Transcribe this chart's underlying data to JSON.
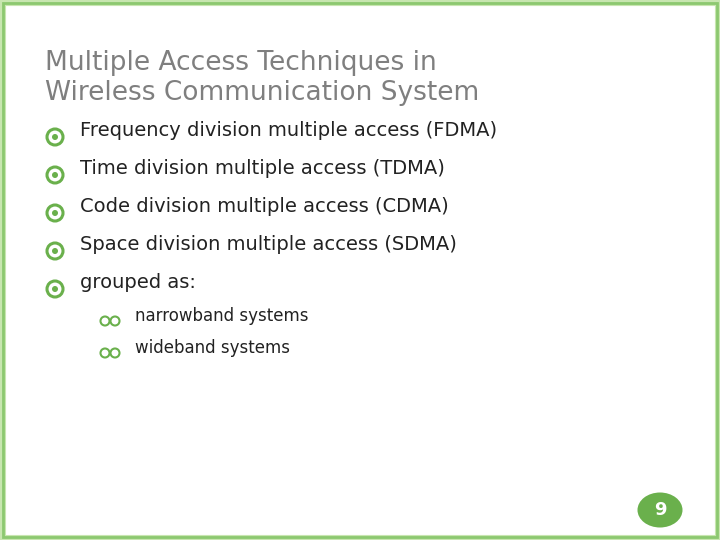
{
  "title_line1": "Multiple Access Techniques in",
  "title_line2": "Wireless Communication System",
  "title_color": "#7f7f7f",
  "background_color": "#ffffff",
  "border_color_outer": "#c8e6b0",
  "border_color_inner": "#8cc870",
  "bullet_color": "#6ab04c",
  "bullet_items": [
    "Frequency division multiple access (FDMA)",
    "Time division multiple access (TDMA)",
    "Code division multiple access (CDMA)",
    "Space division multiple access (SDMA)",
    "grouped as:"
  ],
  "sub_bullet_items": [
    "narrowband systems",
    "wideband systems"
  ],
  "page_number": "9",
  "page_circle_color": "#6ab04c",
  "page_number_color": "#ffffff",
  "title_fontsize": 19,
  "bullet_fontsize": 14,
  "sub_bullet_fontsize": 12
}
